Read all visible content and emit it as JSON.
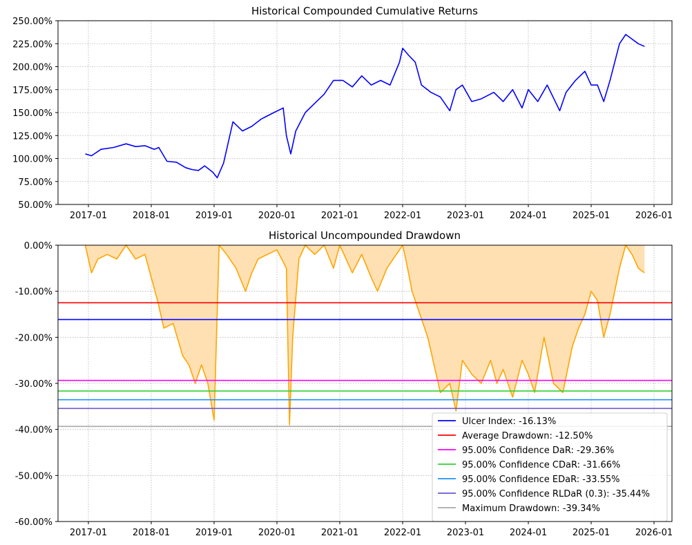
{
  "chart_data": [
    {
      "type": "line",
      "title": "Historical Compounded Cumulative Returns",
      "xlabel": "",
      "ylabel": "",
      "ylim": [
        0.5,
        2.5
      ],
      "grid": true,
      "y_ticks": [
        {
          "value": 0.5,
          "label": "50.00%"
        },
        {
          "value": 0.75,
          "label": "75.00%"
        },
        {
          "value": 1.0,
          "label": "100.00%"
        },
        {
          "value": 1.25,
          "label": "125.00%"
        },
        {
          "value": 1.5,
          "label": "150.00%"
        },
        {
          "value": 1.75,
          "label": "175.00%"
        },
        {
          "value": 2.0,
          "label": "200.00%"
        },
        {
          "value": 2.25,
          "label": "225.00%"
        },
        {
          "value": 2.5,
          "label": "250.00%"
        }
      ],
      "x_ticks": [
        "2017-01",
        "2018-01",
        "2019-01",
        "2020-01",
        "2021-01",
        "2022-01",
        "2023-01",
        "2024-01",
        "2025-01",
        "2026-01"
      ],
      "series": [
        {
          "name": "Cumulative Return",
          "color": "#0000ff",
          "x": [
            2016.95,
            2017.05,
            2017.2,
            2017.4,
            2017.6,
            2017.75,
            2017.9,
            2018.05,
            2018.12,
            2018.25,
            2018.4,
            2018.55,
            2018.65,
            2018.75,
            2018.85,
            2018.98,
            2019.05,
            2019.15,
            2019.3,
            2019.45,
            2019.6,
            2019.75,
            2019.95,
            2020.1,
            2020.15,
            2020.22,
            2020.3,
            2020.45,
            2020.6,
            2020.75,
            2020.9,
            2021.05,
            2021.2,
            2021.35,
            2021.5,
            2021.65,
            2021.8,
            2021.95,
            2022.0,
            2022.1,
            2022.2,
            2022.3,
            2022.45,
            2022.6,
            2022.75,
            2022.85,
            2022.95,
            2023.1,
            2023.25,
            2023.45,
            2023.6,
            2023.75,
            2023.9,
            2024.0,
            2024.15,
            2024.3,
            2024.5,
            2024.6,
            2024.75,
            2024.9,
            2025.0,
            2025.1,
            2025.2,
            2025.3,
            2025.45,
            2025.55,
            2025.65,
            2025.75,
            2025.85
          ],
          "values": [
            1.05,
            1.03,
            1.1,
            1.12,
            1.16,
            1.13,
            1.14,
            1.1,
            1.12,
            0.97,
            0.96,
            0.9,
            0.88,
            0.87,
            0.92,
            0.85,
            0.79,
            0.95,
            1.4,
            1.3,
            1.35,
            1.43,
            1.5,
            1.55,
            1.25,
            1.05,
            1.3,
            1.5,
            1.6,
            1.7,
            1.85,
            1.85,
            1.78,
            1.9,
            1.8,
            1.85,
            1.8,
            2.05,
            2.2,
            2.12,
            2.05,
            1.8,
            1.72,
            1.67,
            1.52,
            1.75,
            1.8,
            1.62,
            1.65,
            1.72,
            1.62,
            1.75,
            1.55,
            1.75,
            1.62,
            1.8,
            1.52,
            1.72,
            1.85,
            1.95,
            1.8,
            1.8,
            1.62,
            1.85,
            2.25,
            2.35,
            2.3,
            2.25,
            2.22
          ]
        }
      ]
    },
    {
      "type": "area",
      "title": "Historical Uncompounded Drawdown",
      "xlabel": "",
      "ylabel": "",
      "ylim": [
        -0.6,
        0.0
      ],
      "grid": true,
      "y_ticks": [
        {
          "value": 0.0,
          "label": "0.00%"
        },
        {
          "value": -0.1,
          "label": "-10.00%"
        },
        {
          "value": -0.2,
          "label": "-20.00%"
        },
        {
          "value": -0.3,
          "label": "-30.00%"
        },
        {
          "value": -0.4,
          "label": "-40.00%"
        },
        {
          "value": -0.5,
          "label": "-50.00%"
        },
        {
          "value": -0.6,
          "label": "-60.00%"
        }
      ],
      "x_ticks": [
        "2017-01",
        "2018-01",
        "2019-01",
        "2020-01",
        "2021-01",
        "2022-01",
        "2023-01",
        "2024-01",
        "2025-01",
        "2026-01"
      ],
      "series": [
        {
          "name": "Drawdown",
          "color": "#ffa500",
          "fill": "#ffe0b2",
          "x": [
            2016.95,
            2017.05,
            2017.15,
            2017.3,
            2017.45,
            2017.6,
            2017.75,
            2017.9,
            2018.0,
            2018.1,
            2018.2,
            2018.35,
            2018.5,
            2018.6,
            2018.7,
            2018.8,
            2018.9,
            2018.95,
            2019.0,
            2019.08,
            2019.2,
            2019.35,
            2019.5,
            2019.6,
            2019.7,
            2019.85,
            2020.0,
            2020.15,
            2020.2,
            2020.25,
            2020.35,
            2020.45,
            2020.6,
            2020.75,
            2020.9,
            2021.0,
            2021.2,
            2021.35,
            2021.5,
            2021.6,
            2021.75,
            2021.9,
            2022.0,
            2022.05,
            2022.15,
            2022.3,
            2022.4,
            2022.5,
            2022.6,
            2022.75,
            2022.85,
            2022.95,
            2023.1,
            2023.25,
            2023.4,
            2023.5,
            2023.6,
            2023.75,
            2023.9,
            2024.0,
            2024.1,
            2024.25,
            2024.4,
            2024.55,
            2024.7,
            2024.8,
            2024.9,
            2025.0,
            2025.1,
            2025.2,
            2025.3,
            2025.45,
            2025.55,
            2025.65,
            2025.75,
            2025.85
          ],
          "values": [
            0.0,
            -0.06,
            -0.03,
            -0.02,
            -0.03,
            0.0,
            -0.03,
            -0.02,
            -0.07,
            -0.12,
            -0.18,
            -0.17,
            -0.24,
            -0.26,
            -0.3,
            -0.26,
            -0.3,
            -0.34,
            -0.38,
            0.0,
            -0.02,
            -0.05,
            -0.1,
            -0.06,
            -0.03,
            -0.02,
            -0.01,
            -0.05,
            -0.39,
            -0.2,
            -0.03,
            0.0,
            -0.02,
            0.0,
            -0.05,
            0.0,
            -0.06,
            -0.02,
            -0.07,
            -0.1,
            -0.05,
            -0.02,
            0.0,
            -0.03,
            -0.1,
            -0.16,
            -0.2,
            -0.26,
            -0.32,
            -0.3,
            -0.36,
            -0.25,
            -0.28,
            -0.3,
            -0.25,
            -0.3,
            -0.27,
            -0.33,
            -0.25,
            -0.28,
            -0.32,
            -0.2,
            -0.3,
            -0.32,
            -0.22,
            -0.18,
            -0.15,
            -0.1,
            -0.12,
            -0.2,
            -0.15,
            -0.05,
            0.0,
            -0.02,
            -0.05,
            -0.06
          ]
        }
      ],
      "hlines": [
        {
          "label": "Ulcer Index: -16.13%",
          "value": -0.1613,
          "color": "#0000ff"
        },
        {
          "label": "Average Drawdown: -12.50%",
          "value": -0.125,
          "color": "#ff0000"
        },
        {
          "label": "95.00% Confidence DaR: -29.36%",
          "value": -0.2936,
          "color": "#ff00ff"
        },
        {
          "label": "95.00% Confidence CDaR: -31.66%",
          "value": -0.3166,
          "color": "#32cd32"
        },
        {
          "label": "95.00% Confidence EDaR: -33.55%",
          "value": -0.3355,
          "color": "#1e90ff"
        },
        {
          "label": "95.00% Confidence RLDaR (0.3): -35.44%",
          "value": -0.3544,
          "color": "#6a5acd"
        },
        {
          "label": "Maximum Drawdown: -39.34%",
          "value": -0.3934,
          "color": "#a9a9a9"
        }
      ],
      "legend_position": "lower-right"
    }
  ]
}
